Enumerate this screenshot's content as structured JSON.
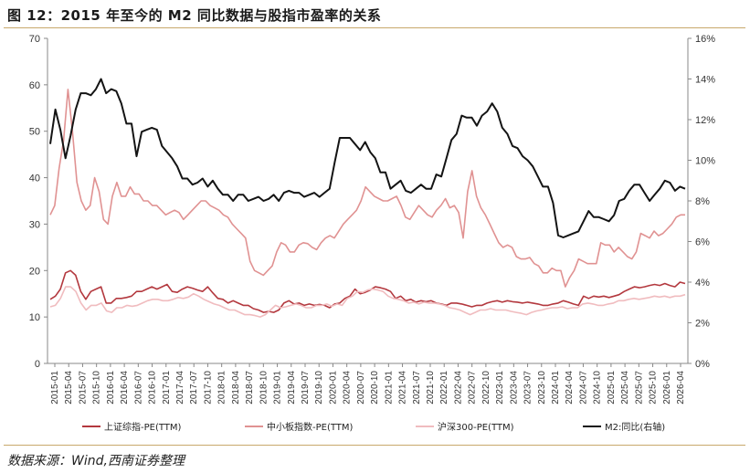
{
  "title": "图 12：2015 年至今的 M2 同比数据与股指市盈率的关系",
  "source": "数据来源：Wind,西南证券整理",
  "chart_data": {
    "type": "line",
    "y_left": {
      "min": 0,
      "max": 70,
      "ticks": [
        0,
        10,
        20,
        30,
        40,
        50,
        60,
        70
      ]
    },
    "y_right": {
      "min": 0,
      "max": 16,
      "unit": "%",
      "ticks": [
        "0%",
        "2%",
        "4%",
        "6%",
        "8%",
        "10%",
        "12%",
        "14%",
        "16%"
      ]
    },
    "x_labels": [
      "2015-01",
      "2015-04",
      "2015-07",
      "2015-10",
      "2016-01",
      "2016-04",
      "2016-07",
      "2016-10",
      "2017-01",
      "2017-04",
      "2017-07",
      "2017-10",
      "2018-01",
      "2018-04",
      "2018-07",
      "2018-10",
      "2019-01",
      "2019-04",
      "2019-07",
      "2019-10",
      "2020-01",
      "2020-04",
      "2020-07",
      "2020-10",
      "2021-01",
      "2021-04",
      "2021-07",
      "2021-10",
      "2022-01",
      "2022-04",
      "2022-07",
      "2022-10",
      "2023-01",
      "2023-04",
      "2023-07",
      "2023-10",
      "2024-01",
      "2024-04",
      "2024-07",
      "2024-10",
      "2025-01",
      "2025-04",
      "2025-07",
      "2025-10",
      "2026-01",
      "2026-04"
    ],
    "series": [
      {
        "name": "上证综指-PE(TTM)",
        "axis": "left",
        "color": "#b3383e",
        "values": [
          13.8,
          14.5,
          16,
          19.5,
          20,
          19,
          15.5,
          13.8,
          15.5,
          16,
          16.5,
          13,
          13,
          14,
          14,
          14.2,
          14.5,
          15.5,
          15.5,
          16,
          16.5,
          16,
          16.5,
          17,
          15.5,
          15.3,
          16,
          16.5,
          16.2,
          15.8,
          15.5,
          16.5,
          15.2,
          14,
          13.8,
          13,
          13.5,
          13,
          12.5,
          12.5,
          11.8,
          11.5,
          11,
          11.2,
          11,
          11.5,
          13,
          13.5,
          12.8,
          13,
          12.5,
          12.8,
          12.5,
          12.7,
          12.5,
          12,
          12.8,
          13,
          14,
          14.5,
          16,
          15,
          15.3,
          15.8,
          16.5,
          16.3,
          16,
          15.5,
          14,
          14.5,
          13.5,
          13.8,
          13.2,
          13.5,
          13.3,
          13.5,
          13,
          12.8,
          12.5,
          13,
          13,
          12.8,
          12.5,
          12.2,
          12.5,
          12.5,
          13,
          13.3,
          13.5,
          13.2,
          13.5,
          13.3,
          13.2,
          13,
          13.2,
          13,
          12.8,
          12.5,
          12.5,
          12.8,
          13,
          13.5,
          13.2,
          12.8,
          12.5,
          14.5,
          14,
          14.5,
          14.3,
          14.5,
          14.2,
          14.5,
          14.8,
          15.5,
          16,
          16.5,
          16.3,
          16.5,
          16.8,
          17,
          16.8,
          17.2,
          16.8,
          16.5,
          17.5,
          17.2
        ]
      },
      {
        "name": "中小板指数-PE(TTM)",
        "axis": "left",
        "color": "#e09292",
        "values": [
          32,
          34,
          42,
          48,
          59,
          50,
          39,
          35,
          33,
          34,
          40,
          37,
          31,
          30,
          36,
          39,
          36,
          36,
          38,
          36.5,
          36.5,
          35,
          35,
          34,
          34,
          33,
          32,
          32.5,
          33,
          32.5,
          31,
          32,
          33,
          34,
          35,
          35,
          34,
          33.5,
          33,
          32,
          31.5,
          30,
          29,
          28,
          27,
          22,
          20,
          19.5,
          19,
          20,
          21,
          24,
          26,
          25.5,
          24,
          24,
          25.5,
          26,
          25.8,
          25,
          24.5,
          26,
          27,
          27.5,
          27,
          28.5,
          30,
          31,
          32,
          33,
          35,
          38,
          37,
          36,
          35.5,
          35,
          35,
          35.5,
          36,
          34,
          31.5,
          31,
          32.5,
          34,
          33,
          32,
          31.5,
          33,
          34,
          35.5,
          33.5,
          34,
          32.5,
          27,
          37,
          41.5,
          36,
          33.5,
          32,
          30,
          28,
          26,
          25,
          25.5,
          25,
          23,
          22.5,
          22.5,
          22.8,
          21.5,
          21,
          19.5,
          19.5,
          20.5,
          20,
          20,
          16.5,
          18.5,
          20,
          22.5,
          22,
          21.5,
          21.5,
          21.5,
          26,
          25.5,
          25.5,
          24,
          25,
          24,
          23,
          22.5,
          24,
          28,
          27.5,
          27,
          28.5,
          27.5,
          28,
          29,
          30,
          31.5,
          32,
          32
        ]
      },
      {
        "name": "沪深300-PE(TTM)",
        "axis": "left",
        "color": "#f0bcbf",
        "values": [
          12.2,
          12.5,
          14,
          16.5,
          16.5,
          15.5,
          13,
          11.5,
          12.5,
          12.5,
          13,
          11.3,
          11,
          12,
          12,
          12.5,
          12.3,
          12.5,
          13,
          13.5,
          13.8,
          13.8,
          13.5,
          13.5,
          13.8,
          14.2,
          14,
          14.3,
          15,
          14.5,
          13.8,
          13.3,
          12.8,
          12.5,
          12,
          11.5,
          11.5,
          11,
          10.5,
          10.5,
          10.3,
          10,
          10.5,
          11.5,
          12.5,
          12,
          12.2,
          12.5,
          12.8,
          12.5,
          12,
          12,
          12.5,
          12.5,
          12.8,
          12.3,
          12.8,
          12.5,
          14,
          14.5,
          15.5,
          15.3,
          15.8,
          16,
          15.8,
          15.5,
          14.5,
          14,
          13.8,
          13.5,
          13,
          13.2,
          12.8,
          13.2,
          13,
          13,
          12.8,
          12.5,
          12,
          11.8,
          11.5,
          11,
          10.5,
          11,
          11.5,
          11.5,
          11.8,
          11.5,
          11.5,
          11.5,
          11.2,
          11,
          10.8,
          10.5,
          11,
          11.3,
          11.5,
          11.8,
          12,
          12,
          12.2,
          11.8,
          12,
          12,
          12.8,
          13,
          12.8,
          12.5,
          12.5,
          12.8,
          13,
          13.5,
          13.5,
          13.8,
          14,
          13.8,
          14,
          14.2,
          14.5,
          14.3,
          14.5,
          14.2,
          14.5,
          14.5,
          14.8
        ]
      },
      {
        "name": "M2:同比(右轴)",
        "axis": "right",
        "color": "#141414",
        "values": [
          10.8,
          12.5,
          11.5,
          10.1,
          11.2,
          12.5,
          13.3,
          13.3,
          13.2,
          13.5,
          14,
          13.3,
          13.5,
          13.4,
          12.8,
          11.8,
          11.8,
          10.2,
          11.4,
          11.5,
          11.6,
          11.5,
          10.7,
          10.4,
          10.1,
          9.7,
          9.1,
          9.1,
          8.8,
          8.9,
          9.1,
          8.7,
          9,
          8.6,
          8.3,
          8.3,
          8.0,
          8.3,
          8.3,
          8.0,
          8.1,
          8.2,
          8.0,
          8.1,
          8.3,
          8.0,
          8.4,
          8.5,
          8.4,
          8.4,
          8.2,
          8.3,
          8.4,
          8.2,
          8.4,
          8.6,
          9.9,
          11.1,
          11.1,
          11.1,
          10.8,
          10.5,
          10.9,
          10.4,
          10.1,
          9.4,
          9.4,
          8.6,
          8.8,
          9,
          8.5,
          8.4,
          8.6,
          8.8,
          8.6,
          8.6,
          9.3,
          9.2,
          10.1,
          11,
          11.3,
          12.2,
          12.1,
          12.1,
          11.7,
          12.2,
          12.4,
          12.8,
          12.4,
          11.6,
          11.3,
          10.7,
          10.6,
          10.2,
          10,
          9.7,
          9.2,
          8.7,
          8.7,
          7.9,
          6.3,
          6.2,
          6.3,
          6.4,
          6.5,
          7.0,
          7.5,
          7.2,
          7.2,
          7.1,
          7.0,
          7.3,
          8.0,
          8.1,
          8.5,
          8.8,
          8.8,
          8.4,
          8.0,
          8.3,
          8.6,
          9.0,
          8.9,
          8.5,
          8.7,
          8.6
        ]
      }
    ],
    "legend_position": "bottom"
  }
}
